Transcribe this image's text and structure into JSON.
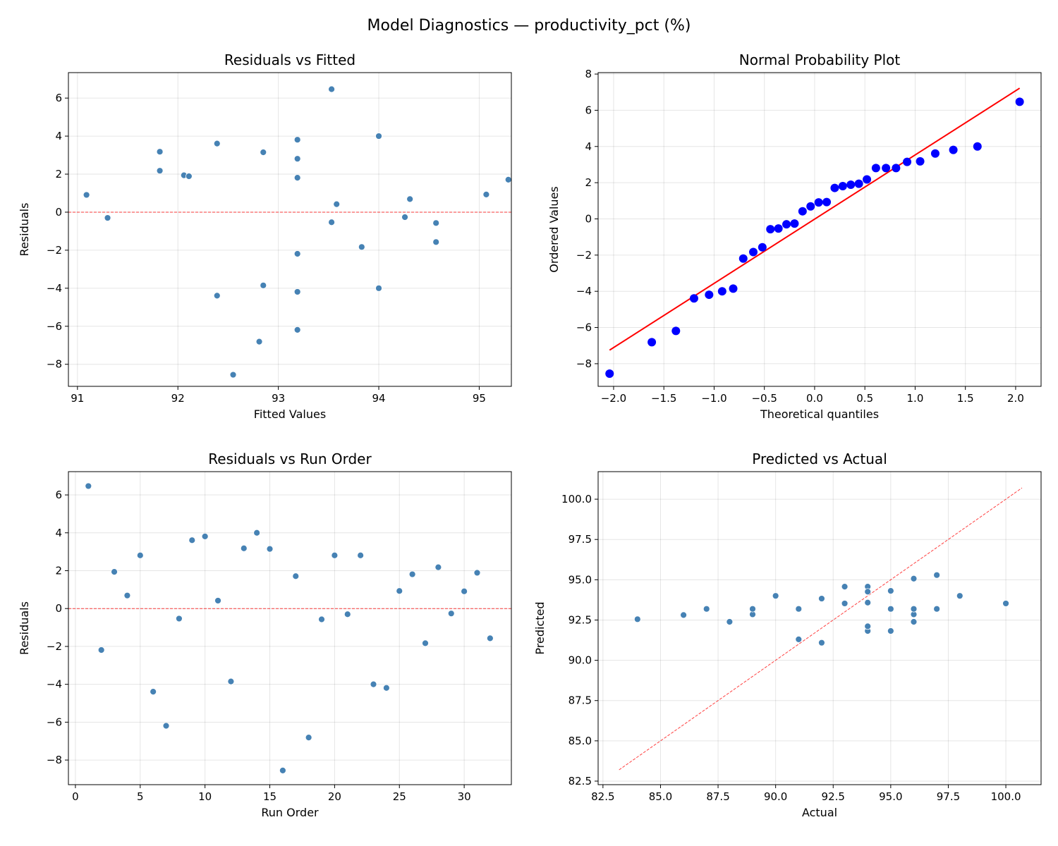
{
  "suptitle": "Model Diagnostics — productivity_pct (%)",
  "chart_data": [
    {
      "type": "scatter",
      "title": "Residuals vs Fitted",
      "xlabel": "Fitted Values",
      "ylabel": "Residuals",
      "xlim": [
        90.91,
        95.32
      ],
      "ylim": [
        -9.16,
        7.34
      ],
      "xticks": [
        91,
        92,
        93,
        94,
        95
      ],
      "yticks": [
        -8,
        -6,
        -4,
        -2,
        0,
        2,
        4,
        6
      ],
      "grid": true,
      "point_color": "#4682b4",
      "reference_line": {
        "y": 0,
        "style": "dashed",
        "color": "#ff0000"
      },
      "x": [
        93.53,
        93.19,
        92.06,
        94.31,
        93.19,
        92.39,
        93.19,
        93.53,
        92.39,
        93.19,
        93.58,
        92.85,
        91.82,
        94.0,
        92.85,
        92.55,
        95.29,
        92.81,
        94.57,
        93.19,
        91.3,
        93.19,
        94.0,
        93.19,
        95.07,
        93.19,
        93.83,
        91.82,
        94.26,
        91.09,
        92.11,
        94.57
      ],
      "y": [
        6.47,
        -2.19,
        1.94,
        0.69,
        2.81,
        -4.39,
        -6.19,
        -0.53,
        3.61,
        3.81,
        0.42,
        -3.85,
        3.18,
        4.0,
        3.15,
        -8.55,
        1.71,
        -6.81,
        -0.57,
        2.81,
        -0.3,
        2.81,
        -4.0,
        -4.19,
        0.93,
        1.81,
        -1.83,
        2.18,
        -0.26,
        0.91,
        1.89,
        -1.57
      ]
    },
    {
      "type": "scatter",
      "title": "Normal Probability Plot",
      "xlabel": "Theoretical quantiles",
      "ylabel": "Ordered Values",
      "xlim": [
        -2.154,
        2.253
      ],
      "ylim": [
        -9.25,
        8.08
      ],
      "xticks": [
        -2.0,
        -1.5,
        -1.0,
        -0.5,
        0.0,
        0.5,
        1.0,
        1.5,
        2.0
      ],
      "yticks": [
        -8,
        -6,
        -4,
        -2,
        0,
        2,
        4,
        6,
        8
      ],
      "grid": true,
      "point_color": "#0000ff",
      "fit_line": {
        "x": [
          -2.04,
          2.04
        ],
        "y": [
          -7.25,
          7.22
        ],
        "color": "#ff0000"
      },
      "x": [
        -2.04,
        -1.62,
        -1.38,
        -1.2,
        -1.05,
        -0.92,
        -0.81,
        -0.71,
        -0.61,
        -0.52,
        -0.44,
        -0.36,
        -0.28,
        -0.2,
        -0.12,
        -0.04,
        0.04,
        0.12,
        0.2,
        0.28,
        0.36,
        0.44,
        0.52,
        0.61,
        0.71,
        0.81,
        0.92,
        1.05,
        1.2,
        1.38,
        1.62,
        2.04
      ],
      "y": [
        -8.55,
        -6.81,
        -6.19,
        -4.39,
        -4.19,
        -4.0,
        -3.85,
        -2.19,
        -1.83,
        -1.57,
        -0.57,
        -0.53,
        -0.3,
        -0.26,
        0.42,
        0.69,
        0.91,
        0.93,
        1.71,
        1.81,
        1.89,
        1.94,
        2.18,
        2.81,
        2.81,
        2.81,
        3.15,
        3.18,
        3.61,
        3.81,
        4.0,
        6.47
      ]
    },
    {
      "type": "scatter",
      "title": "Residuals vs Run Order",
      "xlabel": "Run Order",
      "ylabel": "Residuals",
      "xlim": [
        -0.54,
        33.64
      ],
      "ylim": [
        -9.3,
        7.23
      ],
      "xticks": [
        0,
        5,
        10,
        15,
        20,
        25,
        30
      ],
      "yticks": [
        -8,
        -6,
        -4,
        -2,
        0,
        2,
        4,
        6
      ],
      "grid": true,
      "point_color": "#4682b4",
      "reference_line": {
        "y": 0,
        "style": "dashed",
        "color": "#ff0000"
      },
      "x": [
        1,
        2,
        3,
        4,
        5,
        6,
        7,
        8,
        9,
        10,
        11,
        12,
        13,
        14,
        15,
        16,
        17,
        18,
        19,
        20,
        21,
        22,
        23,
        24,
        25,
        26,
        27,
        28,
        29,
        30,
        31,
        32
      ],
      "y": [
        6.47,
        -2.19,
        1.94,
        0.69,
        2.81,
        -4.39,
        -6.19,
        -0.53,
        3.61,
        3.81,
        0.42,
        -3.85,
        3.18,
        4.0,
        3.15,
        -8.55,
        1.71,
        -6.81,
        -0.57,
        2.81,
        -0.3,
        2.81,
        -4.0,
        -4.19,
        0.93,
        1.81,
        -1.83,
        2.18,
        -0.26,
        0.91,
        1.89,
        -1.57
      ]
    },
    {
      "type": "scatter",
      "title": "Predicted vs Actual",
      "xlabel": "Actual",
      "ylabel": "Predicted",
      "xlim": [
        82.29,
        101.53
      ],
      "ylim": [
        82.28,
        101.71
      ],
      "xticks": [
        82.5,
        85.0,
        87.5,
        90.0,
        92.5,
        95.0,
        97.5,
        100.0
      ],
      "yticks": [
        82.5,
        85.0,
        87.5,
        90.0,
        92.5,
        95.0,
        97.5,
        100.0
      ],
      "grid": true,
      "point_color": "#4682b4",
      "identity_line": {
        "from": 83.2,
        "to": 100.7,
        "style": "dashed",
        "color": "#ff0000"
      },
      "x": [
        100,
        91,
        94,
        95,
        96,
        88,
        87,
        93,
        96,
        97,
        94,
        89,
        95,
        98,
        96,
        84,
        97,
        86,
        94,
        96,
        91,
        96,
        90,
        89,
        96,
        95,
        92,
        94,
        94,
        92,
        94,
        93
      ],
      "y": [
        93.53,
        93.19,
        92.06,
        94.31,
        93.19,
        92.39,
        93.19,
        93.53,
        92.39,
        93.19,
        93.58,
        92.85,
        91.82,
        94.0,
        92.85,
        92.55,
        95.29,
        92.81,
        94.57,
        93.19,
        91.3,
        93.19,
        94.0,
        93.19,
        95.07,
        93.19,
        93.83,
        91.82,
        94.26,
        91.09,
        92.11,
        94.57
      ]
    }
  ]
}
